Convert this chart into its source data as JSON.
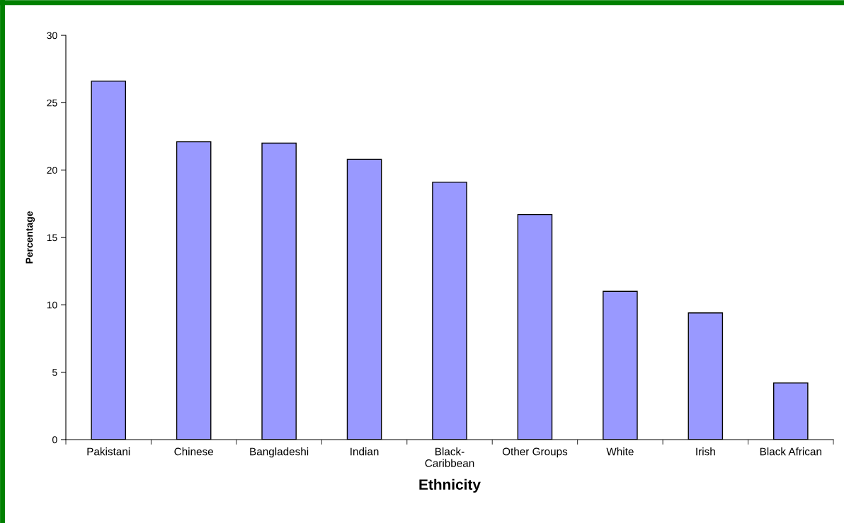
{
  "chart_data": {
    "type": "bar",
    "xlabel": "Ethnicity",
    "ylabel": "Percentage",
    "categories": [
      "Pakistani",
      "Chinese",
      "Bangladeshi",
      "Indian",
      "Black-\nCaribbean",
      "Other Groups",
      "White",
      "Irish",
      "Black African"
    ],
    "values": [
      26.6,
      22.1,
      22.0,
      20.8,
      19.1,
      16.7,
      11.0,
      9.4,
      4.2
    ],
    "color": "#9999ff",
    "ylim": [
      0,
      30
    ],
    "yticks": [
      0,
      5,
      10,
      15,
      20,
      25,
      30
    ],
    "grid": false
  }
}
